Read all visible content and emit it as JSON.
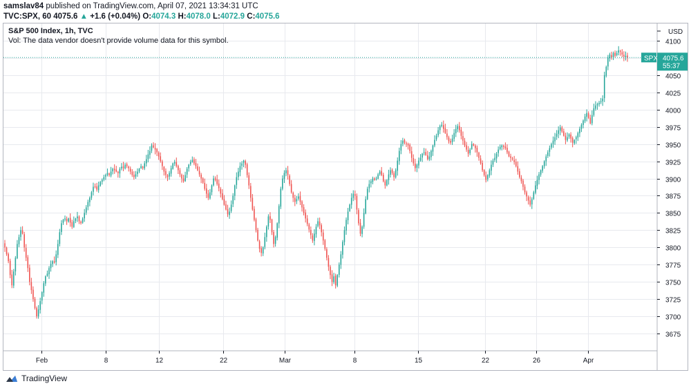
{
  "header": {
    "author": "samslav84",
    "published_text": "published on TradingView.com, April 07, 2021 13:34:31 UTC",
    "symbol": "TVC:SPX, 60",
    "last": "4075.6",
    "arrow": "▲",
    "change": "+1.6 (+0.04%)",
    "o_label": "O:",
    "o_value": "4074.3",
    "h_label": "H:",
    "h_value": "4078.0",
    "l_label": "L:",
    "l_value": "4072.9",
    "c_label": "C:",
    "c_value": "4075.6"
  },
  "legend": {
    "title": "S&P 500 Index, 1h, TVC",
    "volume_note": "Vol: The data vendor doesn't provide volume data for this symbol."
  },
  "price_tag": {
    "symbol": "SPX",
    "price": "4075.6",
    "countdown": "55:37"
  },
  "footer": {
    "brand": "TradingView",
    "logo_icon": "tradingview-logo-icon"
  },
  "colors": {
    "up": "#26a69a",
    "down": "#ef5350",
    "grid": "#e7e9ee",
    "axis_text": "#131722",
    "frame": "#b2b5be"
  },
  "chart_data": {
    "type": "candlestick",
    "title": "S&P 500 Index, 1h, TVC",
    "currency": "USD",
    "ylim": [
      3650,
      4125
    ],
    "y_ticks": [
      3675,
      3700,
      3725,
      3750,
      3775,
      3800,
      3825,
      3850,
      3875,
      3900,
      3925,
      3950,
      3975,
      4000,
      4025,
      4050,
      4075,
      4100
    ],
    "x_ticks": [
      "Feb",
      "8",
      "12",
      "22",
      "Mar",
      "8",
      "15",
      "22",
      "26",
      "Apr"
    ],
    "last_price": 4075.6,
    "grid": true,
    "closes": [
      3800,
      3790,
      3780,
      3760,
      3745,
      3765,
      3785,
      3805,
      3815,
      3825,
      3820,
      3800,
      3785,
      3770,
      3750,
      3738,
      3725,
      3712,
      3700,
      3710,
      3722,
      3735,
      3748,
      3758,
      3762,
      3770,
      3776,
      3780,
      3778,
      3790,
      3805,
      3822,
      3835,
      3840,
      3842,
      3838,
      3842,
      3836,
      3830,
      3838,
      3842,
      3845,
      3838,
      3835,
      3842,
      3850,
      3858,
      3866,
      3872,
      3880,
      3888,
      3888,
      3884,
      3890,
      3895,
      3898,
      3902,
      3905,
      3908,
      3905,
      3910,
      3914,
      3912,
      3910,
      3908,
      3914,
      3917,
      3915,
      3920,
      3918,
      3915,
      3910,
      3905,
      3902,
      3906,
      3910,
      3914,
      3918,
      3915,
      3922,
      3928,
      3935,
      3940,
      3948,
      3945,
      3942,
      3938,
      3932,
      3925,
      3918,
      3910,
      3905,
      3902,
      3908,
      3915,
      3922,
      3924,
      3918,
      3912,
      3906,
      3900,
      3896,
      3905,
      3914,
      3920,
      3924,
      3927,
      3922,
      3918,
      3912,
      3906,
      3900,
      3894,
      3885,
      3878,
      3872,
      3880,
      3890,
      3900,
      3898,
      3892,
      3886,
      3878,
      3870,
      3862,
      3855,
      3848,
      3852,
      3862,
      3875,
      3890,
      3902,
      3910,
      3918,
      3922,
      3926,
      3920,
      3905,
      3890,
      3872,
      3855,
      3840,
      3825,
      3810,
      3798,
      3792,
      3800,
      3815,
      3830,
      3845,
      3840,
      3822,
      3805,
      3815,
      3835,
      3860,
      3885,
      3900,
      3908,
      3912,
      3905,
      3892,
      3880,
      3872,
      3866,
      3870,
      3874,
      3866,
      3858,
      3850,
      3842,
      3834,
      3826,
      3818,
      3810,
      3820,
      3830,
      3838,
      3832,
      3822,
      3810,
      3798,
      3785,
      3772,
      3760,
      3750,
      3758,
      3745,
      3760,
      3775,
      3790,
      3808,
      3825,
      3840,
      3852,
      3862,
      3872,
      3878,
      3875,
      3855,
      3835,
      3820,
      3830,
      3850,
      3870,
      3885,
      3892,
      3896,
      3900,
      3898,
      3900,
      3906,
      3910,
      3905,
      3896,
      3890,
      3898,
      3906,
      3912,
      3908,
      3902,
      3912,
      3926,
      3940,
      3950,
      3955,
      3952,
      3950,
      3948,
      3940,
      3930,
      3922,
      3915,
      3920,
      3926,
      3930,
      3936,
      3938,
      3934,
      3928,
      3932,
      3940,
      3948,
      3956,
      3962,
      3970,
      3976,
      3978,
      3972,
      3966,
      3960,
      3954,
      3952,
      3958,
      3966,
      3972,
      3976,
      3970,
      3962,
      3955,
      3948,
      3942,
      3936,
      3942,
      3950,
      3948,
      3944,
      3938,
      3930,
      3922,
      3912,
      3905,
      3898,
      3905,
      3912,
      3920,
      3926,
      3930,
      3936,
      3942,
      3946,
      3948,
      3946,
      3944,
      3938,
      3932,
      3930,
      3928,
      3924,
      3918,
      3910,
      3902,
      3896,
      3888,
      3880,
      3874,
      3868,
      3862,
      3870,
      3880,
      3890,
      3898,
      3906,
      3912,
      3918,
      3925,
      3932,
      3938,
      3944,
      3950,
      3955,
      3960,
      3965,
      3970,
      3974,
      3968,
      3962,
      3956,
      3960,
      3964,
      3958,
      3952,
      3956,
      3960,
      3966,
      3972,
      3978,
      3984,
      3990,
      3995,
      3988,
      3980,
      3992,
      4002,
      4006,
      4008,
      4010,
      4012,
      4016,
      4050,
      4062,
      4075,
      4080,
      4076,
      4082,
      4078,
      4082,
      4086,
      4084,
      4080,
      4077,
      4078,
      4075.6
    ]
  }
}
